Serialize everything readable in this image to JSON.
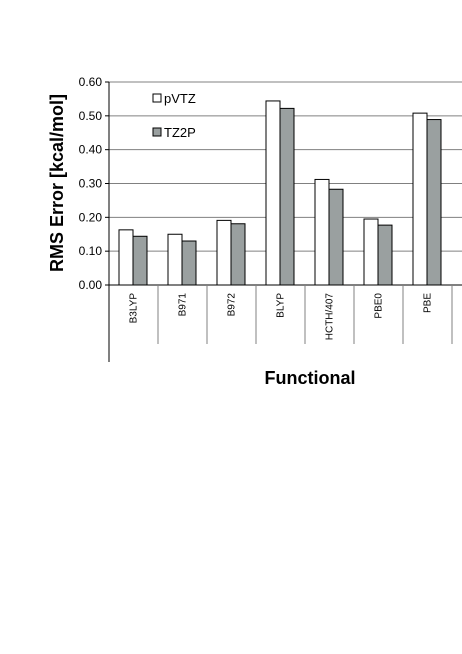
{
  "chart_data": {
    "type": "bar",
    "categories": [
      "B3LYP",
      "B971",
      "B972",
      "BLYP",
      "HCTH/407",
      "PBE0",
      "PBE"
    ],
    "series": [
      {
        "name": "pVTZ",
        "values": [
          0.163,
          0.15,
          0.191,
          0.544,
          0.312,
          0.195,
          0.508
        ],
        "color": "#ffffff"
      },
      {
        "name": "TZ2P",
        "values": [
          0.144,
          0.13,
          0.181,
          0.522,
          0.283,
          0.177,
          0.489
        ],
        "color": "#9aa0a0"
      }
    ],
    "yticks": [
      "0.00",
      "0.10",
      "0.20",
      "0.30",
      "0.40",
      "0.50",
      "0.60"
    ],
    "ylim": [
      0,
      0.6
    ],
    "xlabel": "Functional",
    "ylabel": "RMS Error [kcal/mol]",
    "grid": true,
    "legend": "top-left"
  }
}
